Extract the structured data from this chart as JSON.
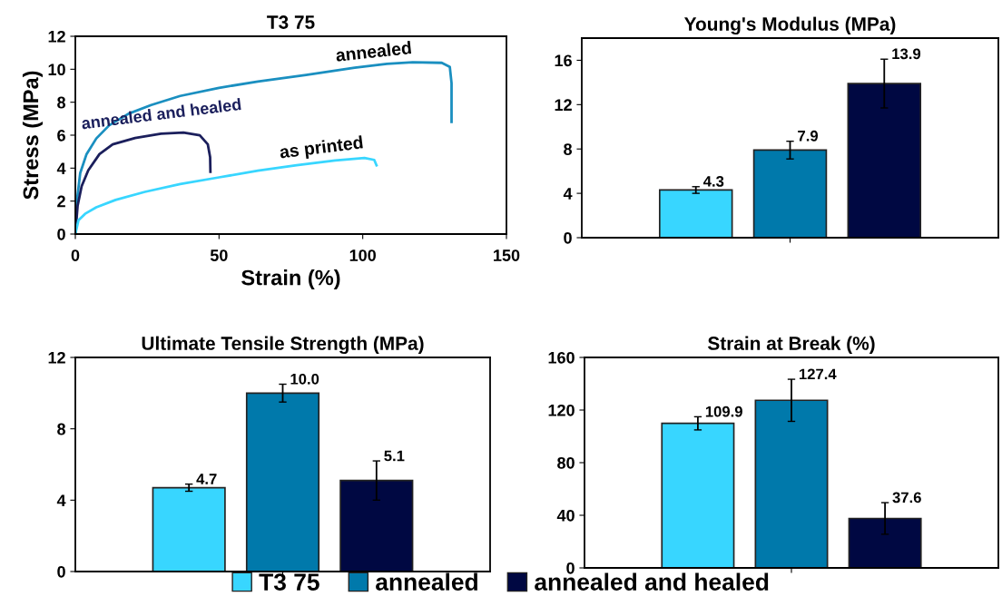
{
  "chart_data": [
    {
      "type": "line",
      "title": "T3 75",
      "xlabel": "Strain (%)",
      "ylabel": "Stress (MPa)",
      "xlim": [
        0,
        150
      ],
      "xticks": [
        0,
        50,
        100,
        150
      ],
      "ylim": [
        0,
        12
      ],
      "yticks": [
        0,
        2,
        4,
        6,
        8,
        10,
        12
      ],
      "grid": false,
      "legend": false,
      "marker": "none",
      "line_style": "solid",
      "series": [
        {
          "name": "annealed",
          "color": "#1a8fc0",
          "x": [
            0,
            0.6,
            1.7,
            3.9,
            7.3,
            11.8,
            18.5,
            26.4,
            36.5,
            50,
            63.5,
            80.3,
            97.2,
            108.4,
            117.4,
            127.5,
            130.3,
            130.9,
            130.9
          ],
          "values": [
            0,
            2.1,
            3.7,
            4.85,
            5.8,
            6.6,
            7.3,
            7.83,
            8.38,
            8.87,
            9.26,
            9.65,
            10.1,
            10.33,
            10.43,
            10.39,
            10.14,
            9.16,
            6.81
          ]
        },
        {
          "name": "annealed and healed",
          "color": "#1b1f5c",
          "x": [
            0,
            0.8,
            2.2,
            4.5,
            8.4,
            13,
            20.8,
            29.8,
            37.6,
            43.3,
            46.1,
            46.9,
            47
          ],
          "values": [
            0,
            1.72,
            2.9,
            3.87,
            4.85,
            5.44,
            5.83,
            6.09,
            6.16,
            5.99,
            5.44,
            4.66,
            3.78
          ]
        },
        {
          "name": "as printed",
          "color": "#38d6ff",
          "x": [
            0,
            1.1,
            3.4,
            7.3,
            14,
            24.2,
            36.5,
            50,
            63.5,
            77,
            90.4,
            100.6,
            104,
            104.8
          ],
          "values": [
            0,
            0.84,
            1.23,
            1.62,
            2.07,
            2.56,
            3.03,
            3.44,
            3.84,
            4.17,
            4.46,
            4.62,
            4.5,
            4.17
          ]
        }
      ]
    },
    {
      "type": "bar",
      "title": "Young's Modulus (MPa)",
      "categories": [
        null
      ],
      "ylim": [
        0,
        18
      ],
      "yticks": [
        0,
        4,
        8,
        12,
        16
      ],
      "grid": false,
      "legend": false,
      "data_labels": true,
      "series": [
        {
          "color": "#38d6ff",
          "values": [
            4.3
          ],
          "errors": [
            0.3
          ]
        },
        {
          "color": "#0079ab",
          "values": [
            7.9
          ],
          "errors": [
            0.8
          ]
        },
        {
          "color": "#000842",
          "values": [
            13.9
          ],
          "errors": [
            2.2
          ]
        }
      ]
    },
    {
      "type": "bar",
      "title": "Ultimate Tensile Strength (MPa)",
      "categories": [
        null
      ],
      "ylim": [
        0,
        12
      ],
      "yticks": [
        0,
        4,
        8,
        12
      ],
      "grid": false,
      "legend": false,
      "data_labels": true,
      "series": [
        {
          "color": "#38d6ff",
          "values": [
            4.7
          ],
          "errors": [
            0.2
          ]
        },
        {
          "color": "#0079ab",
          "values": [
            10.0
          ],
          "errors": [
            0.5
          ],
          "value_labels": [
            "10.0"
          ]
        },
        {
          "color": "#000842",
          "values": [
            5.1
          ],
          "errors": [
            1.1
          ]
        }
      ]
    },
    {
      "type": "bar",
      "title": "Strain at Break (%)",
      "categories": [
        null
      ],
      "ylim": [
        0,
        160
      ],
      "yticks": [
        0,
        40,
        80,
        120,
        160
      ],
      "grid": false,
      "legend": "bottom",
      "data_labels": true,
      "series": [
        {
          "name": "T3 75",
          "color": "#38d6ff",
          "values": [
            109.9
          ],
          "errors": [
            5
          ]
        },
        {
          "name": "annealed",
          "color": "#0079ab",
          "values": [
            127.4
          ],
          "errors": [
            16
          ]
        },
        {
          "name": "annealed and healed",
          "color": "#000842",
          "values": [
            37.6
          ],
          "errors": [
            12
          ]
        }
      ]
    }
  ]
}
